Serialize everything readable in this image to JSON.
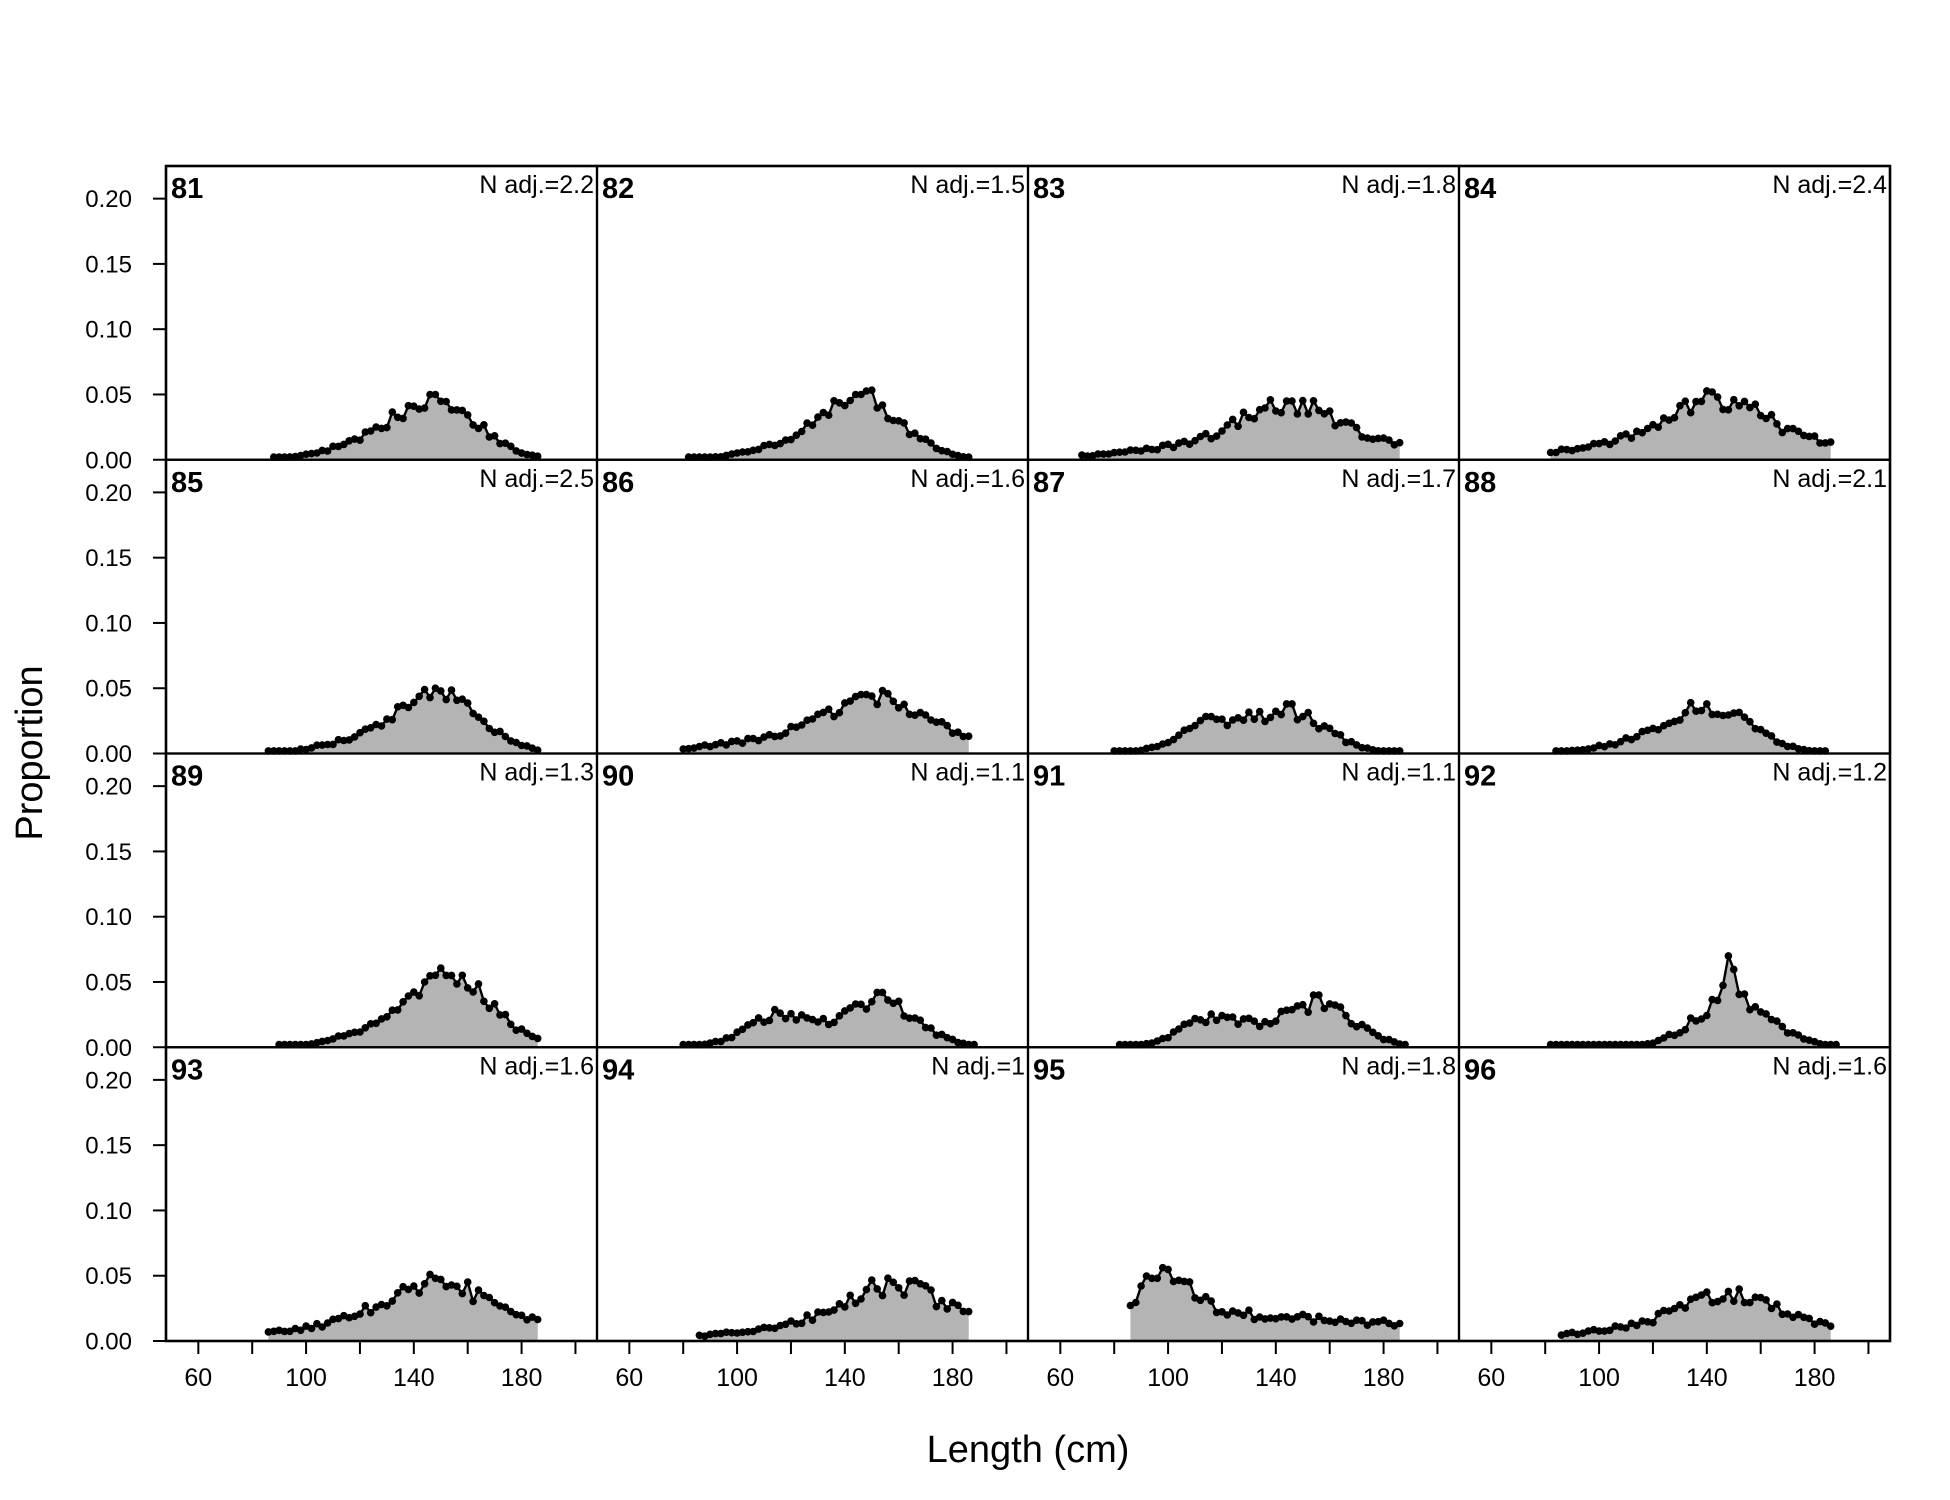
{
  "chart_data": {
    "type": "area",
    "layout": "4x4 panel grid",
    "xlabel": "Length (cm)",
    "ylabel": "Proportion",
    "xlim": [
      48,
      208
    ],
    "ylim": [
      0,
      0.225
    ],
    "x_ticks": [
      60,
      100,
      140,
      180
    ],
    "x_minor_ticks": [
      60,
      80,
      100,
      120,
      140,
      160,
      180,
      200
    ],
    "y_ticks": [
      "0.00",
      "0.05",
      "0.10",
      "0.15",
      "0.20"
    ],
    "fill_color": "#b4b4b4",
    "line_color": "#000000",
    "panels": [
      {
        "id": "81",
        "n_adj": "N adj.=2.2",
        "peak_x": 147,
        "peak_y": 0.05,
        "min_x": 88,
        "max_x": 186,
        "shape": "unimodal"
      },
      {
        "id": "85",
        "n_adj": "N adj.=2.5",
        "peak_x": 148,
        "peak_y": 0.05,
        "min_x": 86,
        "max_x": 186,
        "shape": "unimodal"
      },
      {
        "id": "89",
        "n_adj": "N adj.=1.3",
        "peak_x": 153,
        "peak_y": 0.055,
        "min_x": 90,
        "max_x": 186,
        "shape": "unimodal"
      },
      {
        "id": "93",
        "n_adj": "N adj.=1.6",
        "peak_x": 148,
        "peak_y": 0.048,
        "min_x": 86,
        "max_x": 186,
        "shape": "broad"
      },
      {
        "id": "82",
        "n_adj": "N adj.=1.5",
        "peak_x": 145,
        "peak_y": 0.05,
        "min_x": 82,
        "max_x": 186,
        "shape": "unimodal"
      },
      {
        "id": "86",
        "n_adj": "N adj.=1.6",
        "peak_x": 150,
        "peak_y": 0.044,
        "min_x": 80,
        "max_x": 186,
        "shape": "broad"
      },
      {
        "id": "90",
        "n_adj": "N adj.=1.1",
        "peak_x": 153,
        "peak_y": 0.042,
        "min_x": 80,
        "max_x": 188,
        "shape": "bimodal"
      },
      {
        "id": "94",
        "n_adj": "N adj.=1",
        "peak_x": 158,
        "peak_y": 0.045,
        "min_x": 86,
        "max_x": 186,
        "shape": "broad"
      },
      {
        "id": "83",
        "n_adj": "N adj.=1.8",
        "peak_x": 145,
        "peak_y": 0.045,
        "min_x": 68,
        "max_x": 186,
        "shape": "broad"
      },
      {
        "id": "87",
        "n_adj": "N adj.=1.7",
        "peak_x": 145,
        "peak_y": 0.038,
        "min_x": 80,
        "max_x": 186,
        "shape": "bimodal"
      },
      {
        "id": "91",
        "n_adj": "N adj.=1.1",
        "peak_x": 155,
        "peak_y": 0.04,
        "min_x": 82,
        "max_x": 188,
        "shape": "bimodal"
      },
      {
        "id": "95",
        "n_adj": "N adj.=1.8",
        "peak_x": 95,
        "peak_y": 0.048,
        "min_x": 86,
        "max_x": 186,
        "shape": "left-skewed"
      },
      {
        "id": "84",
        "n_adj": "N adj.=2.4",
        "peak_x": 144,
        "peak_y": 0.048,
        "min_x": 82,
        "max_x": 186,
        "shape": "broad"
      },
      {
        "id": "88",
        "n_adj": "N adj.=2.1",
        "peak_x": 140,
        "peak_y": 0.038,
        "min_x": 84,
        "max_x": 184,
        "shape": "unimodal"
      },
      {
        "id": "92",
        "n_adj": "N adj.=1.2",
        "peak_x": 148,
        "peak_y": 0.07,
        "min_x": 82,
        "max_x": 188,
        "shape": "spiked"
      },
      {
        "id": "96",
        "n_adj": "N adj.=1.6",
        "peak_x": 148,
        "peak_y": 0.038,
        "min_x": 86,
        "max_x": 186,
        "shape": "broad"
      }
    ]
  }
}
